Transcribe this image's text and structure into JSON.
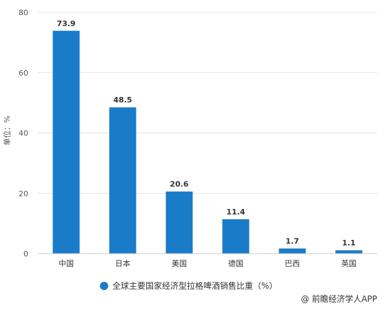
{
  "chart_data": {
    "type": "bar",
    "categories": [
      "中国",
      "日本",
      "美国",
      "德国",
      "巴西",
      "英国"
    ],
    "values": [
      73.9,
      48.5,
      20.6,
      11.4,
      1.7,
      1.1
    ],
    "value_labels": [
      "73.9",
      "48.5",
      "20.6",
      "11.4",
      "1.7",
      "1.1"
    ],
    "ylabel": "单位：%",
    "ylim": [
      0,
      80
    ],
    "yticks": [
      "0",
      "20",
      "40",
      "60",
      "80"
    ],
    "series": [
      {
        "name": "全球主要国家经济型拉格啤酒销售比重（%）",
        "values": [
          73.9,
          48.5,
          20.6,
          11.4,
          1.7,
          1.1
        ]
      }
    ],
    "legend_position": "bottom",
    "grid": true,
    "bar_color": "#1a7bc9"
  },
  "credit": "@ 前瞻经济学人APP"
}
